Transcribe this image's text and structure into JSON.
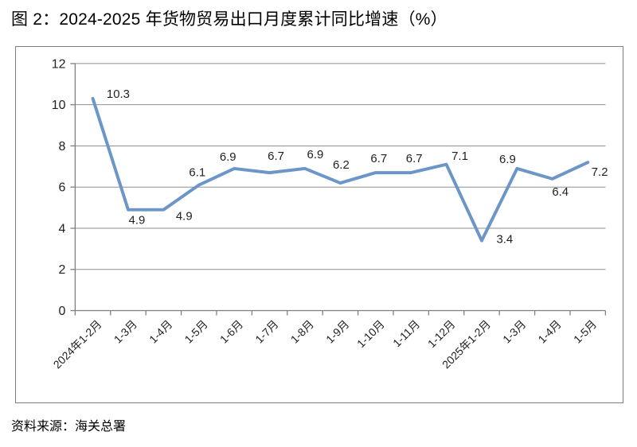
{
  "figure": {
    "title": "图 2：2024-2025 年货物贸易出口月度累计同比增速（%）",
    "source": "资料来源：海关总署"
  },
  "chart_data": {
    "type": "line",
    "title": "图 2：2024-2025 年货物贸易出口月度累计同比增速（%）",
    "categories": [
      "2024年1-2月",
      "1-3月",
      "1-4月",
      "1-5月",
      "1-6月",
      "1-7月",
      "1-8月",
      "1-9月",
      "1-10月",
      "1-11月",
      "1-12月",
      "2025年1-2月",
      "1-3月",
      "1-4月",
      "1-5月"
    ],
    "values": [
      10.3,
      4.9,
      4.9,
      6.1,
      6.9,
      6.7,
      6.9,
      6.2,
      6.7,
      6.7,
      7.1,
      3.4,
      6.9,
      6.4,
      7.2
    ],
    "data_labels_shown": true,
    "xlabel": "",
    "ylabel": "",
    "ylim": [
      0,
      12
    ],
    "yticks": [
      0,
      2,
      4,
      6,
      8,
      10,
      12
    ],
    "grid": true,
    "legend": "none",
    "colors": {
      "line": "#6C96C8",
      "gridline": "#8f8f8f",
      "axis": "#7f7f7f",
      "tick_label": "#1f1f1f",
      "data_label": "#1f1f1f"
    }
  }
}
